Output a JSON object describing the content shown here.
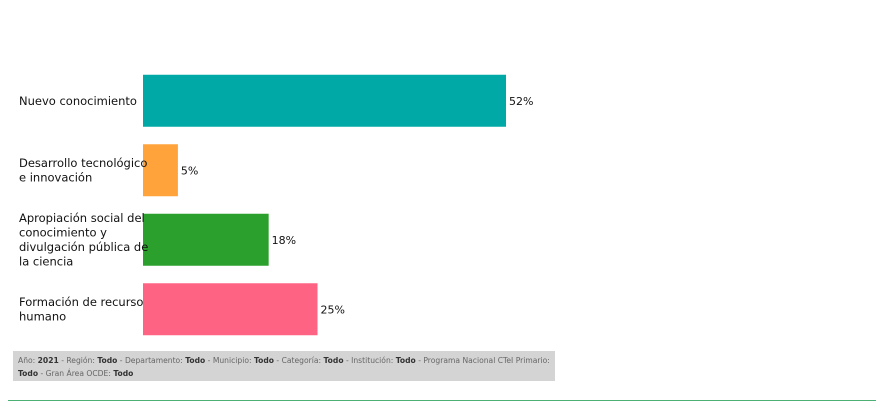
{
  "chart_data": {
    "type": "bar",
    "orientation": "horizontal",
    "categories": [
      "Nuevo conocimiento",
      "Desarrollo tecnológico e innovación",
      "Apropiación social del conocimiento y divulgación pública de la ciencia",
      "Formación de recurso humano"
    ],
    "category_lines": [
      [
        "Nuevo conocimiento"
      ],
      [
        "Desarrollo tecnológico",
        "e innovación"
      ],
      [
        "Apropiación social del",
        "conocimiento y",
        "divulgación pública de",
        "la ciencia"
      ],
      [
        "Formación de recurso",
        "humano"
      ]
    ],
    "values": [
      52,
      5,
      18,
      25
    ],
    "value_labels": [
      "52%",
      "5%",
      "18%",
      "25%"
    ],
    "colors": [
      "#00a9a5",
      "#ffa33a",
      "#2ca02c",
      "#ff6384"
    ],
    "xlim": [
      0,
      52
    ],
    "grid": false,
    "legend": "none"
  },
  "filters": [
    {
      "label": "Año:",
      "value": "2021",
      "sep": " - "
    },
    {
      "label": "Región:",
      "value": "Todo",
      "sep": " - "
    },
    {
      "label": "Departamento:",
      "value": "Todo",
      "sep": " - "
    },
    {
      "label": "Municipio:",
      "value": "Todo",
      "sep": " - "
    },
    {
      "label": "Categoría:",
      "value": "Todo",
      "sep": " - "
    },
    {
      "label": "Institución:",
      "value": "Todo",
      "sep": " - "
    },
    {
      "label": "Programa Nacional CTeI Primario:",
      "value": "Todo",
      "sep": " - "
    },
    {
      "label": "Gran Área OCDE:",
      "value": "Todo",
      "sep": ""
    }
  ]
}
